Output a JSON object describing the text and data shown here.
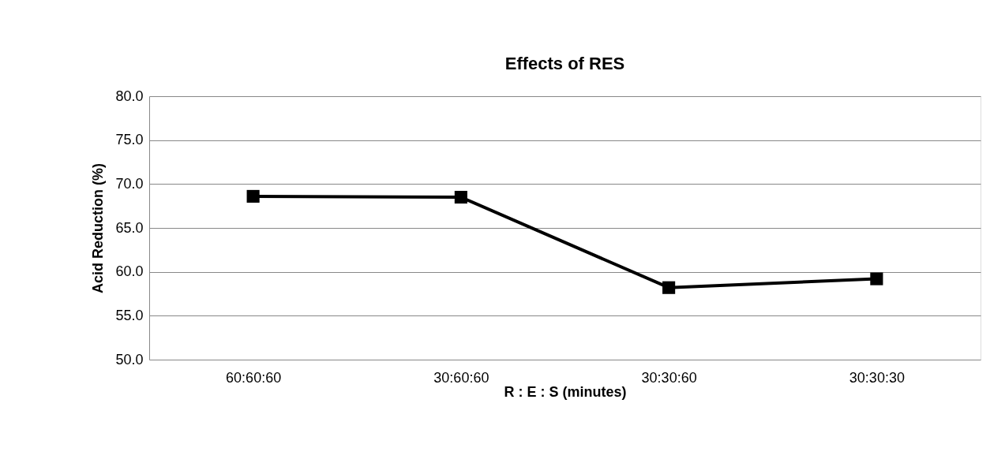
{
  "chart_data": {
    "type": "line",
    "title": "Effects of RES",
    "xlabel": "R : E : S (minutes)",
    "ylabel": "Acid Reduction (%)",
    "categories": [
      "60:60:60",
      "30:60:60",
      "30:30:60",
      "30:30:30"
    ],
    "series": [
      {
        "color": "#000000",
        "values": [
          68.6,
          68.5,
          58.2,
          59.2
        ]
      }
    ],
    "ylim": [
      50,
      80
    ],
    "yticks": [
      {
        "value": 50,
        "label": "50.0"
      },
      {
        "value": 55,
        "label": "55.0"
      },
      {
        "value": 60,
        "label": "60.0"
      },
      {
        "value": 65,
        "label": "65.0"
      },
      {
        "value": 70,
        "label": "70.0"
      },
      {
        "value": 75,
        "label": "75.0"
      },
      {
        "value": 80,
        "label": "80.0"
      }
    ],
    "grid": "y",
    "marker": "square",
    "line_style": "solid"
  }
}
